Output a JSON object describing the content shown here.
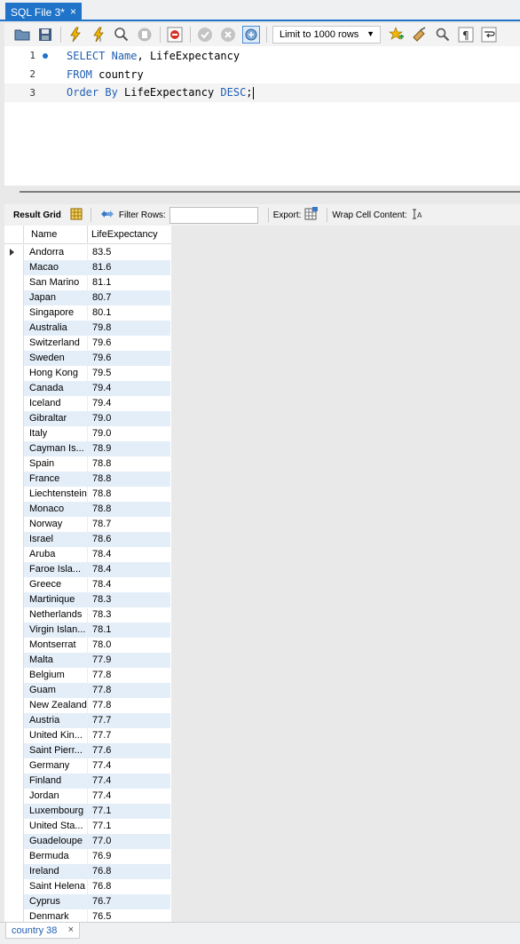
{
  "document_tab": {
    "title": "SQL File 3*",
    "close": "×"
  },
  "toolbar": {
    "icons": [
      "open-folder-icon",
      "save-icon",
      "execute-icon",
      "execute-current-icon",
      "explain-icon",
      "stop-icon",
      "toggle-error-icon",
      "commit-icon",
      "rollback-icon",
      "autocommit-icon",
      "beautify-icon",
      "bookmark-icon",
      "clean-icon",
      "find-icon",
      "invisibles-icon",
      "wrap-icon"
    ],
    "limit_value": "Limit to 1000 rows"
  },
  "editor": {
    "lines": [
      {
        "num": "1",
        "parts": [
          {
            "t": "SELECT",
            "k": true
          },
          {
            "t": " "
          },
          {
            "t": "Name",
            "k": true
          },
          {
            "t": ", LifeExpectancy"
          }
        ]
      },
      {
        "num": "2",
        "parts": [
          {
            "t": "FROM",
            "k": true
          },
          {
            "t": " country"
          }
        ]
      },
      {
        "num": "3",
        "parts": [
          {
            "t": "Order By",
            "k": true
          },
          {
            "t": " LifeExpectancy "
          },
          {
            "t": "DESC",
            "k": true
          },
          {
            "t": ";"
          }
        ]
      }
    ]
  },
  "result_toolbar": {
    "result_grid": "Result Grid",
    "filter_rows": "Filter Rows:",
    "filter_value": "",
    "export": "Export:",
    "wrap": "Wrap Cell Content:"
  },
  "grid": {
    "columns": [
      "Name",
      "LifeExpectancy"
    ],
    "rows": [
      [
        "Andorra",
        "83.5"
      ],
      [
        "Macao",
        "81.6"
      ],
      [
        "San Marino",
        "81.1"
      ],
      [
        "Japan",
        "80.7"
      ],
      [
        "Singapore",
        "80.1"
      ],
      [
        "Australia",
        "79.8"
      ],
      [
        "Switzerland",
        "79.6"
      ],
      [
        "Sweden",
        "79.6"
      ],
      [
        "Hong Kong",
        "79.5"
      ],
      [
        "Canada",
        "79.4"
      ],
      [
        "Iceland",
        "79.4"
      ],
      [
        "Gibraltar",
        "79.0"
      ],
      [
        "Italy",
        "79.0"
      ],
      [
        "Cayman Is...",
        "78.9"
      ],
      [
        "Spain",
        "78.8"
      ],
      [
        "France",
        "78.8"
      ],
      [
        "Liechtenstein",
        "78.8"
      ],
      [
        "Monaco",
        "78.8"
      ],
      [
        "Norway",
        "78.7"
      ],
      [
        "Israel",
        "78.6"
      ],
      [
        "Aruba",
        "78.4"
      ],
      [
        "Faroe Isla...",
        "78.4"
      ],
      [
        "Greece",
        "78.4"
      ],
      [
        "Martinique",
        "78.3"
      ],
      [
        "Netherlands",
        "78.3"
      ],
      [
        "Virgin Islan...",
        "78.1"
      ],
      [
        "Montserrat",
        "78.0"
      ],
      [
        "Malta",
        "77.9"
      ],
      [
        "Belgium",
        "77.8"
      ],
      [
        "Guam",
        "77.8"
      ],
      [
        "New Zealand",
        "77.8"
      ],
      [
        "Austria",
        "77.7"
      ],
      [
        "United Kin...",
        "77.7"
      ],
      [
        "Saint Pierr...",
        "77.6"
      ],
      [
        "Germany",
        "77.4"
      ],
      [
        "Finland",
        "77.4"
      ],
      [
        "Jordan",
        "77.4"
      ],
      [
        "Luxembourg",
        "77.1"
      ],
      [
        "United Sta...",
        "77.1"
      ],
      [
        "Guadeloupe",
        "77.0"
      ],
      [
        "Bermuda",
        "76.9"
      ],
      [
        "Ireland",
        "76.8"
      ],
      [
        "Saint Helena",
        "76.8"
      ],
      [
        "Cyprus",
        "76.7"
      ],
      [
        "Denmark",
        "76.5"
      ]
    ]
  },
  "bottom_tab": {
    "title": "country 38",
    "close": "×"
  }
}
